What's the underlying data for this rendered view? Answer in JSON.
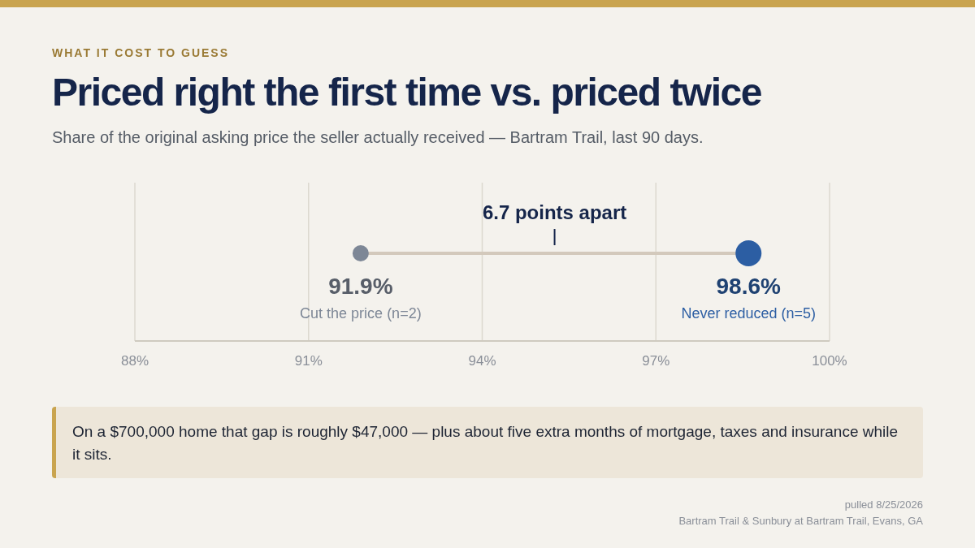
{
  "chart_data": {
    "type": "scatter",
    "orientation": "horizontal",
    "title": "Priced right the first time vs. priced twice",
    "subtitle": "Share of the original asking price the seller actually received — Bartram Trail, last 90 days.",
    "categories": [
      null
    ],
    "xlim": [
      88,
      100
    ],
    "xticks": [
      {
        "value": 88,
        "label": "88%"
      },
      {
        "value": 91,
        "label": "91%"
      },
      {
        "value": 94,
        "label": "94%"
      },
      {
        "value": 97,
        "label": "97%"
      },
      {
        "value": 100,
        "label": "100%"
      }
    ],
    "series": [
      {
        "name": "Cut the price (n=2)",
        "color": "#7d8796",
        "values": [
          91.9
        ],
        "value_labels": [
          "91.9%"
        ]
      },
      {
        "name": "Never reduced (n=5)",
        "color": "#2c5ea3",
        "values": [
          98.6
        ],
        "value_labels": [
          "98.6%"
        ]
      }
    ],
    "grid": "x",
    "marker": "circle",
    "annotations": [
      "WHAT IT COST TO GUESS",
      "6.7 points apart",
      "On a $700,000 home that gap is roughly $47,000 — plus about five extra months of mortgage, taxes and insurance while it sits.",
      "pulled 8/25/2026",
      "Bartram Trail & Sunbury at Bartram Trail, Evans, GA"
    ]
  }
}
